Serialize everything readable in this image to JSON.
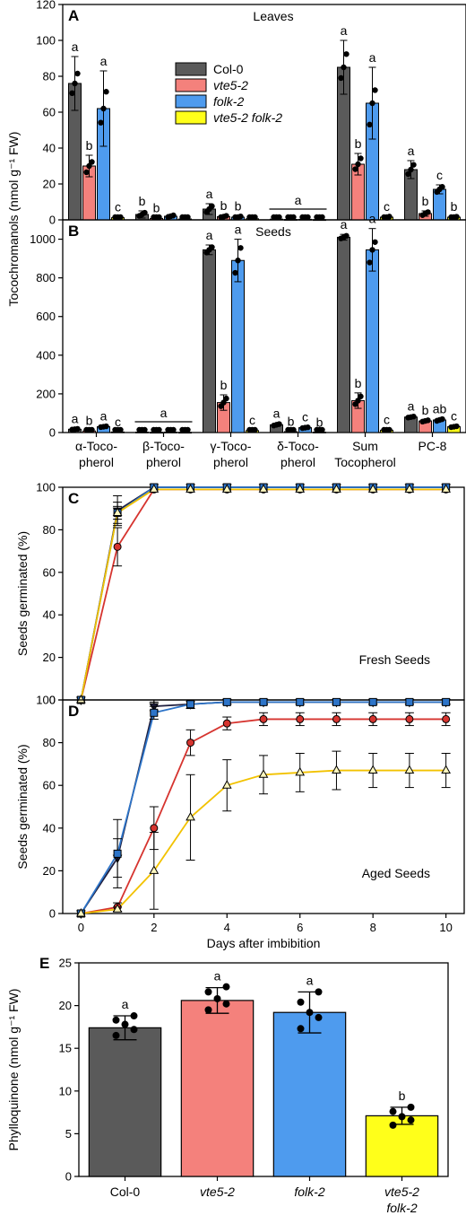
{
  "colors": {
    "col0": "#5a5a5a",
    "vte5": "#f4817c",
    "folk": "#4e9bee",
    "double": "#ffff1a",
    "line_col0": "#1f1f3f",
    "line_vte5": "#d6342f",
    "line_folk": "#2d74c8",
    "line_double": "#f2c200"
  },
  "legend": [
    {
      "label": "Col-0",
      "italic": false
    },
    {
      "label": "vte5-2",
      "italic": true
    },
    {
      "label": "folk-2",
      "italic": true
    },
    {
      "label": "vte5-2 folk-2",
      "italic": true
    }
  ],
  "shared_labels": {
    "ab_ylabel": "Tocochromanols (nmol g⁻¹ FW)",
    "cd_xlabel": "Days after imbibition"
  },
  "chart_data": [
    {
      "panel": "A",
      "type": "bar",
      "title": "Leaves",
      "ylim": [
        0,
        120
      ],
      "yticks": [
        0,
        20,
        40,
        60,
        80,
        100,
        120
      ],
      "categories": [
        "α-Tocopherol",
        "β-Tocopherol",
        "γ-Tocopherol",
        "δ-Tocopherol",
        "Sum Tocopherol",
        "PC-8"
      ],
      "series": [
        {
          "name": "Col-0",
          "values": [
            76,
            3,
            6,
            0.4,
            85,
            28
          ],
          "err": [
            15,
            2,
            3,
            0.3,
            15,
            5
          ]
        },
        {
          "name": "vte5-2",
          "values": [
            30,
            0.8,
            1.8,
            0.2,
            31,
            3.5
          ],
          "err": [
            6,
            0.5,
            0.8,
            0.1,
            6,
            1.5
          ]
        },
        {
          "name": "folk-2",
          "values": [
            62,
            2,
            1.5,
            0.3,
            65,
            17
          ],
          "err": [
            21,
            1,
            0.7,
            0.2,
            20,
            2.5
          ]
        },
        {
          "name": "vte5-2 folk-2",
          "values": [
            1.2,
            0.5,
            0.6,
            0.1,
            1.5,
            1.5
          ],
          "err": [
            0.5,
            0.3,
            0.3,
            0.1,
            0.6,
            0.5
          ]
        }
      ],
      "letters": [
        [
          "a",
          "b",
          "a",
          "c"
        ],
        [
          "b",
          "b"
        ],
        [
          "a",
          "b",
          "b"
        ],
        [],
        [
          "a",
          "b",
          "a",
          "c"
        ],
        [
          "a",
          "b",
          "c",
          "b"
        ]
      ],
      "span_letter": {
        "category": 3,
        "letter": "a"
      }
    },
    {
      "panel": "B",
      "type": "bar",
      "title": "Seeds",
      "ylim": [
        0,
        1100
      ],
      "yticks": [
        0,
        200,
        400,
        600,
        800,
        1000
      ],
      "categories": [
        "α-Tocopherol",
        "β-Tocopherol",
        "γ-Tocopherol",
        "δ-Tocopherol",
        "Sum Tocopherol",
        "PC-8"
      ],
      "tick_labels": [
        [
          "α-Toco-",
          "pherol"
        ],
        [
          "β-Toco-",
          "pherol"
        ],
        [
          "γ-Toco-",
          "pherol"
        ],
        [
          "δ-Toco-",
          "pherol"
        ],
        [
          "Sum",
          "Tocopherol"
        ],
        [
          "PC-8"
        ]
      ],
      "series": [
        {
          "name": "Col-0",
          "values": [
            17,
            2,
            945,
            40,
            1010,
            80
          ],
          "err": [
            5,
            1,
            25,
            8,
            15,
            5
          ]
        },
        {
          "name": "vte5-2",
          "values": [
            8,
            1,
            155,
            5,
            165,
            60
          ],
          "err": [
            3,
            0.5,
            40,
            2,
            40,
            6
          ]
        },
        {
          "name": "folk-2",
          "values": [
            30,
            2,
            890,
            25,
            945,
            65
          ],
          "err": [
            5,
            1,
            110,
            5,
            110,
            8
          ]
        },
        {
          "name": "vte5-2 folk-2",
          "values": [
            3,
            1,
            10,
            2,
            12,
            30
          ],
          "err": [
            2,
            0.5,
            4,
            1,
            4,
            5
          ]
        }
      ],
      "letters": [
        [
          "a",
          "b",
          "a",
          "c"
        ],
        [],
        [
          "a",
          "b",
          "a",
          "c"
        ],
        [
          "a",
          "b",
          "c",
          "b"
        ],
        [
          "a",
          "b",
          "a",
          "c"
        ],
        [
          "a",
          "b",
          "ab",
          "c"
        ]
      ],
      "span_letter": {
        "category": 1,
        "letter": "a"
      }
    },
    {
      "panel": "C",
      "type": "line",
      "inset_label": "Fresh Seeds",
      "ylabel": "Seeds germinated (%)",
      "xlim": [
        -0.5,
        10.5
      ],
      "ylim": [
        0,
        100
      ],
      "xticks": [
        0,
        2,
        4,
        6,
        8,
        10
      ],
      "yticks": [
        0,
        20,
        40,
        60,
        80,
        100
      ],
      "x": [
        0,
        1,
        2,
        3,
        4,
        5,
        6,
        7,
        8,
        9,
        10
      ],
      "series": [
        {
          "name": "Col-0",
          "values": [
            0,
            89,
            100,
            100,
            100,
            100,
            100,
            100,
            100,
            100,
            100
          ],
          "err": [
            0,
            7,
            0,
            0,
            0,
            0,
            0,
            0,
            0,
            0,
            0
          ],
          "marker": "triangle-down"
        },
        {
          "name": "vte5-2",
          "values": [
            0,
            72,
            99,
            99,
            99,
            99,
            99,
            99,
            99,
            99,
            99
          ],
          "err": [
            0,
            9,
            0,
            0,
            0,
            0,
            0,
            0,
            0,
            0,
            0
          ],
          "marker": "circle"
        },
        {
          "name": "folk-2",
          "values": [
            0,
            88,
            100,
            100,
            100,
            100,
            100,
            100,
            100,
            100,
            100
          ],
          "err": [
            0,
            5,
            0,
            0,
            0,
            0,
            0,
            0,
            0,
            0,
            0
          ],
          "marker": "square"
        },
        {
          "name": "vte5-2 folk-2",
          "values": [
            0,
            88,
            99,
            99,
            99,
            99,
            99,
            99,
            99,
            99,
            99
          ],
          "err": [
            0,
            3,
            0,
            0,
            0,
            0,
            0,
            0,
            0,
            0,
            0
          ],
          "marker": "triangle-up"
        }
      ]
    },
    {
      "panel": "D",
      "type": "line",
      "inset_label": "Aged Seeds",
      "ylabel": "Seeds germinated (%)",
      "xlabel": "Days after imbibition",
      "xlim": [
        -0.5,
        10.5
      ],
      "ylim": [
        0,
        100
      ],
      "xticks": [
        0,
        2,
        4,
        6,
        8,
        10
      ],
      "yticks": [
        0,
        20,
        40,
        60,
        80,
        100
      ],
      "x": [
        0,
        1,
        2,
        3,
        4,
        5,
        6,
        7,
        8,
        9,
        10
      ],
      "series": [
        {
          "name": "Col-0",
          "values": [
            0,
            26,
            97,
            98,
            99,
            99,
            99,
            99,
            99,
            99,
            99
          ],
          "err": [
            0,
            9,
            2,
            2,
            1,
            1,
            1,
            1,
            1,
            1,
            1
          ],
          "marker": "triangle-down"
        },
        {
          "name": "vte5-2",
          "values": [
            0,
            3,
            40,
            80,
            89,
            91,
            91,
            91,
            91,
            91,
            91
          ],
          "err": [
            0,
            2,
            10,
            6,
            3,
            3,
            3,
            3,
            3,
            3,
            3
          ],
          "marker": "circle"
        },
        {
          "name": "folk-2",
          "values": [
            0,
            28,
            94,
            98,
            99,
            99,
            99,
            99,
            99,
            99,
            99
          ],
          "err": [
            0,
            16,
            3,
            2,
            1,
            1,
            1,
            1,
            1,
            1,
            1
          ],
          "marker": "square"
        },
        {
          "name": "vte5-2 folk-2",
          "values": [
            0,
            2,
            20,
            45,
            60,
            65,
            66,
            67,
            67,
            67,
            67
          ],
          "err": [
            0,
            1,
            18,
            20,
            12,
            9,
            9,
            9,
            8,
            8,
            8
          ],
          "marker": "triangle-up"
        }
      ]
    },
    {
      "panel": "E",
      "type": "bar",
      "ylabel": "Phylloquinone (nmol g⁻¹ FW)",
      "ylim": [
        0,
        25
      ],
      "yticks": [
        0,
        5,
        10,
        15,
        20,
        25
      ],
      "categories": [
        "Col-0",
        "vte5-2",
        "folk-2",
        "vte5-2 folk-2"
      ],
      "tick_labels": [
        [
          "Col-0"
        ],
        [
          "vte5-2"
        ],
        [
          "folk-2"
        ],
        [
          "vte5-2",
          "folk-2"
        ]
      ],
      "italic": [
        false,
        true,
        true,
        true
      ],
      "values": [
        17.4,
        20.6,
        19.2,
        7.1
      ],
      "err": [
        1.4,
        1.5,
        2.4,
        1.0
      ],
      "letters": [
        "a",
        "a",
        "a",
        "b"
      ],
      "points": [
        [
          16.5,
          17.2,
          17.8,
          18.3,
          18.8
        ],
        [
          19.5,
          20.2,
          20.8,
          21.6,
          22.2
        ],
        [
          17.3,
          18.6,
          19.2,
          20.4,
          21.6
        ],
        [
          6.0,
          6.6,
          7.0,
          7.6,
          8.1
        ]
      ]
    }
  ]
}
